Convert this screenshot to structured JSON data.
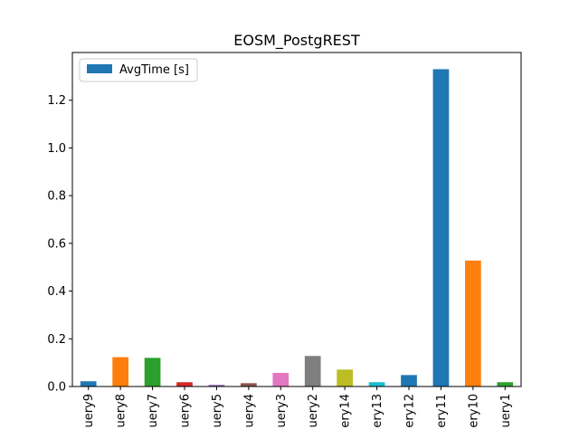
{
  "chart_data": {
    "type": "bar",
    "title": "EOSM_PostgREST",
    "xlabel": "",
    "ylabel": "",
    "categories": [
      "uery9",
      "uery8",
      "uery7",
      "uery6",
      "uery5",
      "uery4",
      "uery3",
      "uery2",
      "ery14",
      "ery13",
      "ery12",
      "ery11",
      "ery10",
      "uery1"
    ],
    "series": [
      {
        "name": "AvgTime [s]",
        "values": [
          0.022,
          0.123,
          0.12,
          0.018,
          0.007,
          0.014,
          0.057,
          0.128,
          0.071,
          0.018,
          0.048,
          1.33,
          0.528,
          0.018
        ]
      }
    ],
    "bar_colors": [
      "#1f77b4",
      "#ff7f0e",
      "#2ca02c",
      "#d62728",
      "#9467bd",
      "#8c564b",
      "#e377c2",
      "#7f7f7f",
      "#bcbd22",
      "#17becf",
      "#1f77b4",
      "#1f77b4",
      "#ff7f0e",
      "#2ca02c"
    ],
    "legend_color": "#1f77b4",
    "ylim": [
      0,
      1.4
    ],
    "yticks": [
      0.0,
      0.2,
      0.4,
      0.6,
      0.8,
      1.0,
      1.2
    ],
    "ytick_labels": [
      "0.0",
      "0.2",
      "0.4",
      "0.6",
      "0.8",
      "1.0",
      "1.2"
    ],
    "grid": false,
    "legend_position": "top-left"
  }
}
